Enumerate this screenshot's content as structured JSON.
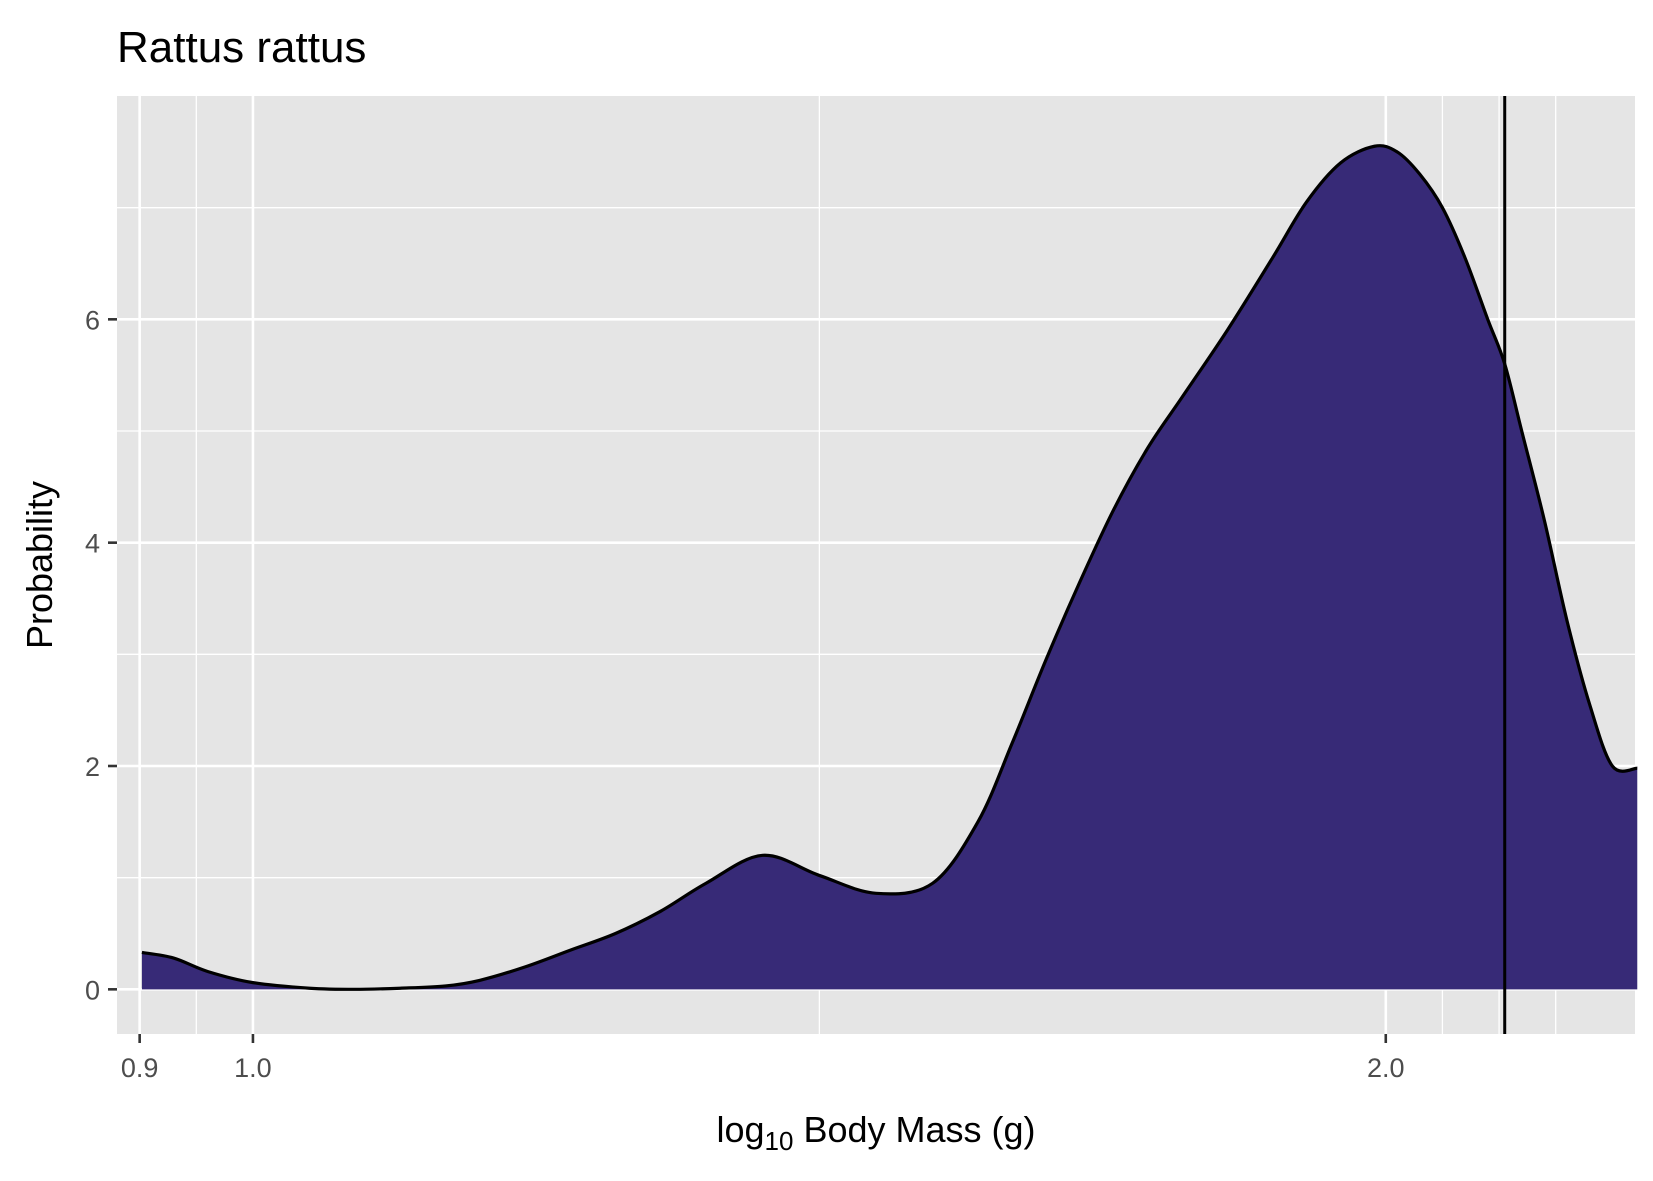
{
  "chart_data": {
    "type": "area",
    "title": "Rattus rattus",
    "xlabel": {
      "prefix": "log",
      "subscript": "10",
      "suffix": " Body Mass (g)"
    },
    "ylabel": "Probability",
    "xlim": [
      0.88,
      2.22
    ],
    "ylim": [
      -0.4,
      8.0
    ],
    "x_ticks": [
      0.9,
      1.0,
      2.0
    ],
    "x_tick_labels": [
      "0.9",
      "1.0",
      "2.0"
    ],
    "x_minor_gridlines": [
      0.9,
      0.95,
      1.0,
      1.5,
      2.0,
      2.05,
      2.1,
      2.15
    ],
    "y_ticks": [
      0,
      2,
      4,
      6
    ],
    "y_tick_labels": [
      "0",
      "2",
      "4",
      "6"
    ],
    "y_minor_gridlines": [
      1,
      3,
      5,
      7
    ],
    "grid": true,
    "legend": "none",
    "vline_x": 2.105,
    "fill_color": "#372a77",
    "line_color": "#000000",
    "panel_color": "#e5e5e5",
    "series": [
      {
        "x": [
          0.902,
          0.93,
          0.96,
          1.0,
          1.05,
          1.09,
          1.13,
          1.17,
          1.2,
          1.24,
          1.28,
          1.32,
          1.36,
          1.4,
          1.45,
          1.5,
          1.55,
          1.6,
          1.64,
          1.67,
          1.7,
          1.73,
          1.76,
          1.79,
          1.82,
          1.86,
          1.9,
          1.93,
          1.96,
          1.99,
          2.01,
          2.03,
          2.05,
          2.07,
          2.09,
          2.105,
          2.12,
          2.14,
          2.16,
          2.18,
          2.2,
          2.222
        ],
        "y": [
          0.33,
          0.28,
          0.16,
          0.06,
          0.01,
          0.0,
          0.01,
          0.03,
          0.08,
          0.2,
          0.35,
          0.5,
          0.7,
          0.95,
          1.2,
          1.02,
          0.86,
          0.95,
          1.5,
          2.2,
          2.95,
          3.65,
          4.3,
          4.85,
          5.3,
          5.9,
          6.55,
          7.05,
          7.4,
          7.55,
          7.5,
          7.3,
          7.0,
          6.55,
          6.0,
          5.6,
          5.0,
          4.2,
          3.3,
          2.55,
          2.0,
          1.98
        ]
      }
    ]
  }
}
